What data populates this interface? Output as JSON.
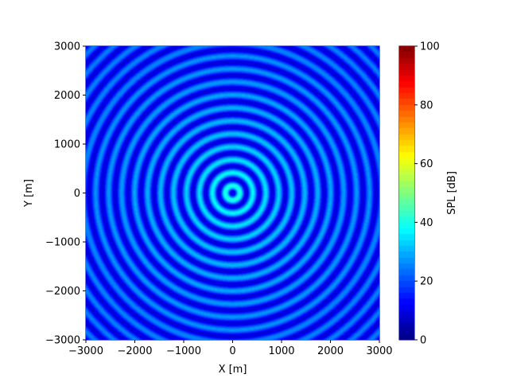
{
  "chart_data": {
    "type": "heatmap",
    "title": "",
    "xlabel": "X [m]",
    "ylabel": "Y [m]",
    "xlim": [
      -3000,
      3000
    ],
    "ylim": [
      -3000,
      3000
    ],
    "x_ticks": [
      -3000,
      -2000,
      -1000,
      0,
      1000,
      2000,
      3000
    ],
    "y_ticks": [
      -3000,
      -2000,
      -1000,
      0,
      1000,
      2000,
      3000
    ],
    "x_tick_labels": [
      "−3000",
      "−2000",
      "−1000",
      "0",
      "1000",
      "2000",
      "3000"
    ],
    "y_tick_labels": [
      "−3000",
      "−2000",
      "−1000",
      "0",
      "1000",
      "2000",
      "3000"
    ],
    "source_position": [
      0,
      0
    ],
    "ring_spacing_m": 265,
    "spl_center_peak_db": 45,
    "spl_edge_peak_db": 24,
    "spl_trough_db": 8,
    "grid": false,
    "colorbar": {
      "label": "SPL [dB]",
      "range": [
        0,
        100
      ],
      "ticks": [
        0,
        20,
        40,
        60,
        80,
        100
      ],
      "tick_labels": [
        "0",
        "20",
        "40",
        "60",
        "80",
        "100"
      ],
      "levels": 50,
      "colormap": "jet",
      "position": "right"
    }
  }
}
